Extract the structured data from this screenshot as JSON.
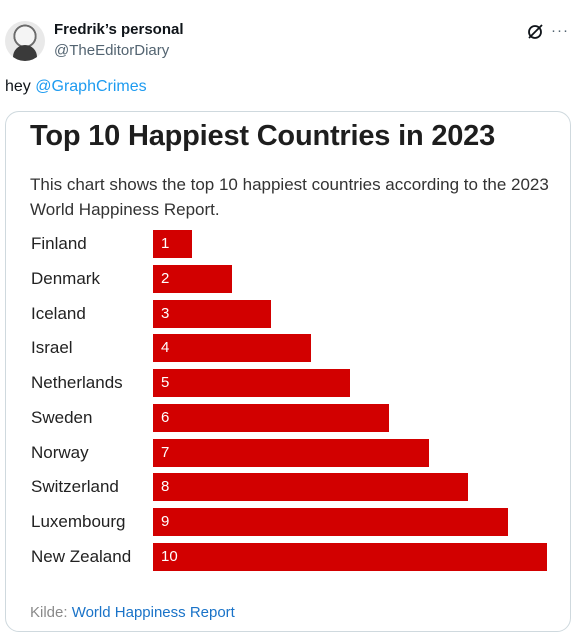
{
  "tweet": {
    "display_name": "Fredrik’s personal",
    "handle": "@TheEditorDiary",
    "text_prefix": "hey ",
    "mention": "@GraphCrimes",
    "more_label": "···",
    "grok_icon": "grok-icon"
  },
  "chart_data": {
    "type": "bar",
    "orientation": "horizontal",
    "title": "Top 10 Happiest Countries in 2023",
    "subtitle": "This chart shows the top 10 happiest countries according to the 2023 World Happiness Report.",
    "categories": [
      "Finland",
      "Denmark",
      "Iceland",
      "Israel",
      "Netherlands",
      "Sweden",
      "Norway",
      "Switzerland",
      "Luxembourg",
      "New Zealand"
    ],
    "values": [
      1,
      2,
      3,
      4,
      5,
      6,
      7,
      8,
      9,
      10
    ],
    "bar_color": "#d20000",
    "source_label": "Kilde:",
    "source_link": "World Happiness Report"
  }
}
